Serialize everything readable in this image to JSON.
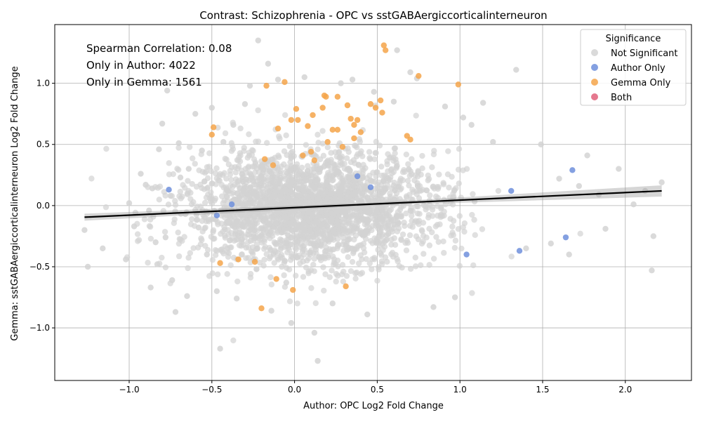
{
  "chart_data": {
    "type": "scatter",
    "title": "Contrast: Schizophrenia - OPC vs sstGABAergiccorticalinterneuron",
    "xlabel": "Author: OPC Log2 Fold Change",
    "ylabel": "Gemma: sstGABAergiccorticalinterneuron Log2 Fold Change",
    "xlim": [
      -1.45,
      2.4
    ],
    "ylim": [
      -1.43,
      1.48
    ],
    "x_ticks": [
      -1.0,
      -0.5,
      0.0,
      0.5,
      1.0,
      1.5,
      2.0
    ],
    "x_tick_labels": [
      "−1.0",
      "−0.5",
      "0.0",
      "0.5",
      "1.0",
      "1.5",
      "2.0"
    ],
    "y_ticks": [
      -1.0,
      -0.5,
      0.0,
      0.5,
      1.0
    ],
    "y_tick_labels": [
      "−1.0",
      "−0.5",
      "0.0",
      "0.5",
      "1.0"
    ],
    "grid": true,
    "annotations": [
      "Spearman Correlation: 0.08",
      "Only in Author: 4022",
      "Only in Gemma: 1561"
    ],
    "legend": {
      "title": "Significance",
      "placement": "top-right",
      "entries": [
        {
          "label": "Not Significant",
          "color": "#d3d3d3"
        },
        {
          "label": "Author Only",
          "color": "#6f8fdc"
        },
        {
          "label": "Gemma Only",
          "color": "#f5a54a"
        },
        {
          "label": "Both",
          "color": "#e0607a"
        }
      ]
    },
    "regression_line": {
      "x": [
        -1.27,
        2.22
      ],
      "y": [
        -0.095,
        0.12
      ],
      "color": "#000000"
    },
    "series": [
      {
        "name": "Not Significant",
        "color": "#d3d3d3",
        "points": [
          [
            -1.27,
            -0.2
          ],
          [
            -1.25,
            -0.5
          ],
          [
            -1.16,
            -0.35
          ],
          [
            -1.02,
            -0.44
          ],
          [
            -1.0,
            0.02
          ],
          [
            -0.97,
            -0.17
          ],
          [
            -0.93,
            0.26
          ],
          [
            -0.9,
            0.17
          ],
          [
            -0.88,
            -0.04
          ],
          [
            -0.87,
            -0.67
          ],
          [
            -0.86,
            0.14
          ],
          [
            -0.84,
            -0.3
          ],
          [
            -0.83,
            -0.48
          ],
          [
            -0.82,
            0.46
          ],
          [
            -0.8,
            0.67
          ],
          [
            -0.78,
            -0.26
          ],
          [
            -0.77,
            0.94
          ],
          [
            -0.75,
            0.08
          ],
          [
            -0.74,
            -0.61
          ],
          [
            -0.72,
            -0.87
          ],
          [
            -0.7,
            0.51
          ],
          [
            -0.69,
            0.23
          ],
          [
            -0.66,
            -0.07
          ],
          [
            -0.65,
            -0.74
          ],
          [
            -0.64,
            0.3
          ],
          [
            -0.6,
            0.75
          ],
          [
            -0.58,
            -0.18
          ],
          [
            -0.56,
            0.45
          ],
          [
            -0.53,
            -0.4
          ],
          [
            -0.5,
            0.8
          ],
          [
            -0.47,
            -0.7
          ],
          [
            -0.45,
            -1.17
          ],
          [
            -0.43,
            0.52
          ],
          [
            -0.4,
            -0.13
          ],
          [
            -0.37,
            0.66
          ],
          [
            -0.35,
            -0.76
          ],
          [
            -0.3,
            0.83
          ],
          [
            -0.27,
            0.98
          ],
          [
            -0.23,
            -0.52
          ],
          [
            -0.22,
            1.35
          ],
          [
            -0.16,
            1.16
          ],
          [
            -0.14,
            -0.86
          ],
          [
            -0.1,
            1.03
          ],
          [
            -0.05,
            -0.63
          ],
          [
            -0.02,
            -0.96
          ],
          [
            0.06,
            1.05
          ],
          [
            0.12,
            -1.04
          ],
          [
            0.14,
            -1.27
          ],
          [
            0.23,
            -0.8
          ],
          [
            0.28,
            1.0
          ],
          [
            0.35,
            1.03
          ],
          [
            0.44,
            -0.89
          ],
          [
            0.48,
            0.93
          ],
          [
            0.6,
            0.85
          ],
          [
            0.62,
            1.27
          ],
          [
            0.7,
            1.09
          ],
          [
            0.74,
            1.04
          ],
          [
            0.84,
            -0.83
          ],
          [
            0.91,
            0.81
          ],
          [
            0.97,
            -0.75
          ],
          [
            1.02,
            0.72
          ],
          [
            1.07,
            0.66
          ],
          [
            1.14,
            0.84
          ],
          [
            1.2,
            0.52
          ],
          [
            1.34,
            1.11
          ],
          [
            1.4,
            -0.35
          ],
          [
            1.49,
            0.5
          ],
          [
            1.55,
            -0.31
          ],
          [
            1.6,
            0.22
          ],
          [
            1.66,
            -0.4
          ],
          [
            1.72,
            0.16
          ],
          [
            1.77,
            0.41
          ],
          [
            1.84,
            0.09
          ],
          [
            1.88,
            -0.19
          ],
          [
            1.96,
            0.3
          ],
          [
            2.05,
            0.01
          ],
          [
            2.12,
            0.12
          ],
          [
            2.16,
            -0.53
          ],
          [
            2.17,
            -0.25
          ],
          [
            2.22,
            0.19
          ]
        ]
      },
      {
        "name": "Author Only",
        "color": "#6f8fdc",
        "points": [
          [
            -0.76,
            0.13
          ],
          [
            -0.47,
            -0.08
          ],
          [
            -0.38,
            0.01
          ],
          [
            0.38,
            0.24
          ],
          [
            0.46,
            0.15
          ],
          [
            1.04,
            -0.4
          ],
          [
            1.31,
            0.12
          ],
          [
            1.36,
            -0.37
          ],
          [
            1.64,
            -0.26
          ],
          [
            1.68,
            0.29
          ]
        ]
      },
      {
        "name": "Gemma Only",
        "color": "#f5a54a",
        "points": [
          [
            -0.5,
            0.58
          ],
          [
            -0.49,
            0.64
          ],
          [
            -0.45,
            -0.47
          ],
          [
            -0.34,
            -0.44
          ],
          [
            -0.24,
            -0.46
          ],
          [
            -0.2,
            -0.84
          ],
          [
            -0.18,
            0.38
          ],
          [
            -0.17,
            0.98
          ],
          [
            -0.13,
            0.33
          ],
          [
            -0.11,
            -0.6
          ],
          [
            -0.1,
            0.63
          ],
          [
            -0.06,
            1.01
          ],
          [
            -0.02,
            0.7
          ],
          [
            -0.01,
            -0.69
          ],
          [
            0.01,
            0.79
          ],
          [
            0.02,
            0.7
          ],
          [
            0.05,
            0.41
          ],
          [
            0.08,
            0.65
          ],
          [
            0.1,
            0.44
          ],
          [
            0.11,
            0.74
          ],
          [
            0.12,
            0.37
          ],
          [
            0.17,
            0.8
          ],
          [
            0.18,
            0.9
          ],
          [
            0.19,
            0.89
          ],
          [
            0.2,
            0.52
          ],
          [
            0.23,
            0.62
          ],
          [
            0.26,
            0.89
          ],
          [
            0.26,
            0.62
          ],
          [
            0.29,
            0.48
          ],
          [
            0.31,
            -0.66
          ],
          [
            0.32,
            0.82
          ],
          [
            0.34,
            0.71
          ],
          [
            0.36,
            0.66
          ],
          [
            0.36,
            0.55
          ],
          [
            0.38,
            0.7
          ],
          [
            0.4,
            0.6
          ],
          [
            0.46,
            0.83
          ],
          [
            0.49,
            0.8
          ],
          [
            0.52,
            0.86
          ],
          [
            0.53,
            0.76
          ],
          [
            0.54,
            1.31
          ],
          [
            0.55,
            1.27
          ],
          [
            0.68,
            0.57
          ],
          [
            0.7,
            0.54
          ],
          [
            0.75,
            1.06
          ],
          [
            0.99,
            0.99
          ]
        ]
      },
      {
        "name": "Both",
        "color": "#e0607a",
        "points": []
      }
    ]
  }
}
